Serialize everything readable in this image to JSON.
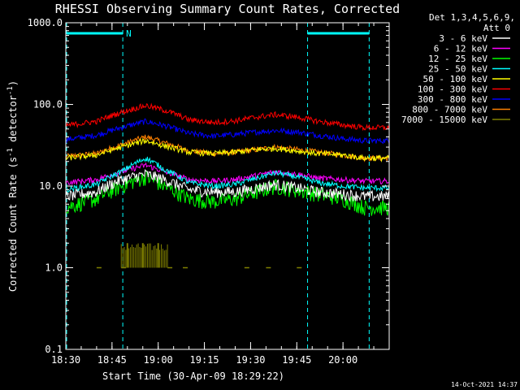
{
  "chart_data": {
    "type": "line",
    "title": "RHESSI Observing Summary Count Rates, Corrected",
    "xlabel": "Start Time (30-Apr-09 18:29:22)",
    "ylabel_prefix": "Corrected Count Rate (s",
    "ylabel_sup1": "-1",
    "ylabel_mid": " detector",
    "ylabel_sup2": "-1",
    "ylabel_suffix": ")",
    "y_scale": "log",
    "ylim": [
      0.1,
      1000
    ],
    "xlim_min": [
      1110,
      1215
    ],
    "x_ticks": [
      "18:30",
      "18:45",
      "19:00",
      "19:15",
      "19:30",
      "19:45",
      "20:00"
    ],
    "x_tick_min": [
      1110,
      1125,
      1140,
      1155,
      1170,
      1185,
      1200
    ],
    "y_ticks": [
      "0.1",
      "1.0",
      "10.0",
      "100.0",
      "1000.0"
    ],
    "y_tick_val": [
      0.1,
      1,
      10,
      100,
      1000
    ],
    "legend_header": [
      "Det 1,3,4,5,6,9,",
      "Att 0"
    ],
    "flag_label": "N",
    "night_intervals_min": [
      [
        1109.5,
        1128.5
      ],
      [
        1188.5,
        1208.5
      ]
    ],
    "series": [
      {
        "name": "3 - 6 keV",
        "color": "#ffffff",
        "x": [
          1110,
          1120,
          1128,
          1136,
          1142,
          1150,
          1158,
          1165,
          1172,
          1178,
          1185,
          1192,
          1200,
          1207
        ],
        "y": [
          7.5,
          8.5,
          12,
          14,
          12,
          9,
          8.5,
          8.5,
          9.5,
          10.5,
          9.5,
          8.5,
          8,
          7.5
        ]
      },
      {
        "name": "6 - 12 keV",
        "color": "#ff00ff",
        "x": [
          1110,
          1120,
          1128,
          1136,
          1142,
          1150,
          1158,
          1165,
          1172,
          1178,
          1185,
          1192,
          1200,
          1207
        ],
        "y": [
          11,
          12,
          15,
          18,
          15,
          12,
          11.5,
          12,
          13.5,
          15,
          14,
          12.5,
          12,
          11.5
        ]
      },
      {
        "name": "12 - 25 keV",
        "color": "#00ff00",
        "x": [
          1110,
          1120,
          1128,
          1136,
          1142,
          1150,
          1158,
          1165,
          1172,
          1178,
          1185,
          1192,
          1200,
          1207
        ],
        "y": [
          5.5,
          7,
          10,
          13,
          10,
          7,
          6.5,
          7,
          8.5,
          10,
          9,
          8,
          7,
          5.5
        ]
      },
      {
        "name": "25 - 50 keV",
        "color": "#00ffff",
        "x": [
          1110,
          1120,
          1128,
          1136,
          1142,
          1150,
          1158,
          1165,
          1172,
          1178,
          1185,
          1192,
          1200,
          1207
        ],
        "y": [
          9,
          10.5,
          15,
          22,
          16,
          11,
          10,
          10.5,
          12.5,
          14.5,
          13,
          11,
          10,
          9.5
        ]
      },
      {
        "name": "50 - 100 keV",
        "color": "#ffff00",
        "x": [
          1110,
          1120,
          1128,
          1136,
          1142,
          1150,
          1158,
          1165,
          1172,
          1178,
          1185,
          1192,
          1200,
          1207
        ],
        "y": [
          22,
          24,
          30,
          36,
          31,
          26,
          25,
          26,
          28,
          29,
          27,
          25,
          24,
          22
        ]
      },
      {
        "name": "100 - 300 keV",
        "color": "#ff0000",
        "x": [
          1110,
          1120,
          1128,
          1136,
          1142,
          1150,
          1158,
          1165,
          1172,
          1178,
          1185,
          1192,
          1200,
          1207
        ],
        "y": [
          55,
          62,
          80,
          97,
          85,
          65,
          60,
          63,
          70,
          75,
          70,
          62,
          56,
          52
        ]
      },
      {
        "name": "300 - 800 keV",
        "color": "#0000ff",
        "x": [
          1110,
          1120,
          1128,
          1136,
          1142,
          1150,
          1158,
          1165,
          1172,
          1178,
          1185,
          1192,
          1200,
          1207
        ],
        "y": [
          37,
          42,
          52,
          62,
          55,
          44,
          41,
          43,
          46,
          48,
          46,
          42,
          38,
          36
        ]
      },
      {
        "name": "800 - 7000 keV",
        "color": "#ff8000",
        "x": [
          1110,
          1120,
          1128,
          1136,
          1142,
          1150,
          1158,
          1165,
          1172,
          1178,
          1185,
          1192,
          1200,
          1207
        ],
        "y": [
          23,
          25,
          32,
          40,
          34,
          27,
          25,
          26,
          28,
          30,
          28,
          26,
          24,
          22
        ]
      },
      {
        "name": "7000 - 15000 keV",
        "color": "#808000",
        "x": [
          1120,
          1128,
          1130,
          1135,
          1140,
          1143,
          1148,
          1168,
          1175,
          1185
        ],
        "y": [
          1,
          1,
          2,
          2,
          2,
          1,
          1,
          1,
          1,
          1
        ]
      }
    ],
    "footer_date": "14-Oct-2021 14:37"
  }
}
